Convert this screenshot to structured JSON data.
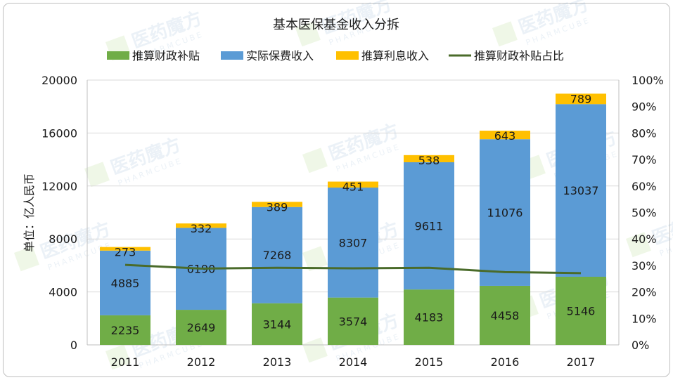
{
  "chart_data": {
    "type": "bar",
    "subtype": "stacked-bar-with-line",
    "title": "基本医保基金收入分拆",
    "ylabel": "单位：亿人民币",
    "categories": [
      "2011",
      "2012",
      "2013",
      "2014",
      "2015",
      "2016",
      "2017"
    ],
    "ylim": [
      0,
      20000
    ],
    "yticks": [
      "0",
      "4000",
      "8000",
      "12000",
      "16000",
      "20000"
    ],
    "y2lim": [
      0,
      1
    ],
    "y2ticks": [
      "0%",
      "10%",
      "20%",
      "30%",
      "40%",
      "50%",
      "60%",
      "70%",
      "80%",
      "90%",
      "100%"
    ],
    "grid": true,
    "legend_position": "top",
    "series": [
      {
        "name": "推算财政补贴",
        "type": "bar",
        "color": "#70ad47",
        "values": [
          2235,
          2649,
          3144,
          3574,
          4183,
          4458,
          5146
        ],
        "labels": [
          "2235",
          "2649",
          "3144",
          "3574",
          "4183",
          "4458",
          "5146"
        ]
      },
      {
        "name": "实际保费收入",
        "type": "bar",
        "color": "#5b9bd5",
        "values": [
          4885,
          6190,
          7268,
          8307,
          9611,
          11076,
          13037
        ],
        "labels": [
          "4885",
          "6190",
          "7268",
          "8307",
          "9611",
          "11076",
          "13037"
        ]
      },
      {
        "name": "推算利息收入",
        "type": "bar",
        "color": "#ffc000",
        "values": [
          273,
          332,
          389,
          451,
          538,
          643,
          789
        ],
        "labels": [
          "273",
          "332",
          "389",
          "451",
          "538",
          "643",
          "789"
        ]
      },
      {
        "name": "推算财政补贴占比",
        "type": "line",
        "axis": "right",
        "color": "#4a6b2a",
        "values": [
          0.302,
          0.288,
          0.291,
          0.289,
          0.291,
          0.275,
          0.271
        ]
      }
    ]
  },
  "watermark": {
    "brand": "医药魔方",
    "sub": "PHARMCUBE"
  }
}
